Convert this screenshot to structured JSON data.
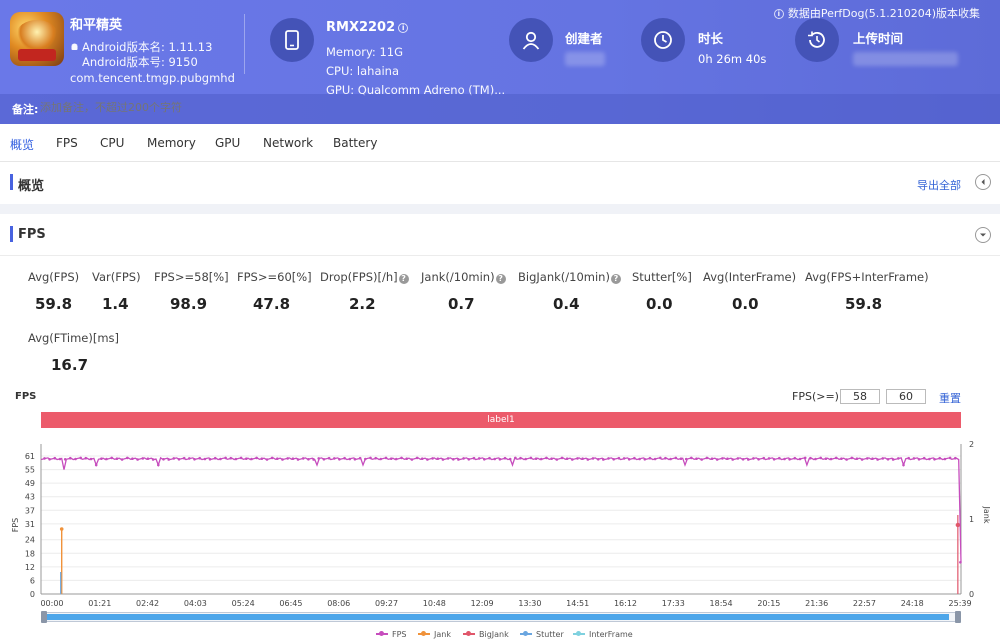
{
  "header": {
    "game_title": "和平精英",
    "version_name": "Android版本名: 1.11.13",
    "version_code": "Android版本号: 9150",
    "package": "com.tencent.tmgp.pubgmhd",
    "device_model": "RMX2202",
    "memory": "Memory: 11G",
    "cpu": "CPU: lahaina",
    "gpu": "GPU: Qualcomm Adreno (TM)...",
    "creator_label": "创建者",
    "duration_label": "时长",
    "duration_value": "0h 26m 40s",
    "upload_label": "上传时间",
    "perfdog_note": "数据由PerfDog(5.1.210204)版本收集",
    "remark_label": "备注:",
    "remark_placeholder": "添加备注，不超过200个字符"
  },
  "tabs": [
    {
      "label": "概览",
      "active": true
    },
    {
      "label": "FPS"
    },
    {
      "label": "CPU"
    },
    {
      "label": "Memory"
    },
    {
      "label": "GPU"
    },
    {
      "label": "Network"
    },
    {
      "label": "Battery"
    }
  ],
  "overview": {
    "title": "概览",
    "export_label": "导出全部"
  },
  "fps_section": {
    "title": "FPS",
    "stats": [
      {
        "label": "Avg(FPS)",
        "value": "59.8"
      },
      {
        "label": "Var(FPS)",
        "value": "1.4"
      },
      {
        "label": "FPS>=58[%]",
        "value": "98.9"
      },
      {
        "label": "FPS>=60[%]",
        "value": "47.8"
      },
      {
        "label": "Drop(FPS)[/h]",
        "value": "2.2"
      },
      {
        "label": "Jank(/10min)",
        "value": "0.7"
      },
      {
        "label": "BigJank(/10min)",
        "value": "0.4"
      },
      {
        "label": "Stutter[%]",
        "value": "0.0"
      },
      {
        "label": "Avg(InterFrame)",
        "value": "0.0"
      },
      {
        "label": "Avg(FPS+InterFrame)",
        "value": "59.8"
      },
      {
        "label": "Avg(FTime)[ms]",
        "value": "16.7"
      }
    ]
  },
  "chart_controls": {
    "title": "FPS",
    "threshold_label": "FPS(>=)",
    "threshold_1": "58",
    "threshold_2": "60",
    "reset_label": "重置",
    "band_label": "label1"
  },
  "colors": {
    "fps": "#c64dbd",
    "jank": "#f0923a",
    "bigjank": "#e0566a",
    "stutter": "#6aa6e0",
    "interframe": "#7fd1df",
    "header": "#6574e2",
    "accent": "#2f5de0"
  },
  "chart_data": {
    "type": "line",
    "ylabel": "FPS",
    "y2label": "Jank",
    "ylim": [
      0,
      61
    ],
    "yticks": [
      0,
      6,
      12,
      18,
      24,
      31,
      37,
      43,
      49,
      55,
      61
    ],
    "y2lim": [
      0,
      2
    ],
    "y2ticks": [
      0,
      1,
      2
    ],
    "x_ticks": [
      "00:00",
      "01:21",
      "02:42",
      "04:03",
      "05:24",
      "06:45",
      "08:06",
      "09:27",
      "10:48",
      "12:09",
      "13:30",
      "14:51",
      "16:12",
      "17:33",
      "18:54",
      "20:15",
      "21:36",
      "22:57",
      "24:18",
      "25:39"
    ],
    "duration_seconds": 1600,
    "series": [
      {
        "name": "FPS",
        "summary": "steady around 59-60 fps with brief dips to ~55-56; drops toward 0 at the end",
        "baseline": 59.8,
        "dips": [
          [
            40,
            55
          ],
          [
            95,
            57
          ],
          [
            205,
            57
          ],
          [
            480,
            57
          ],
          [
            560,
            57
          ],
          [
            820,
            57
          ],
          [
            1120,
            57
          ],
          [
            1330,
            57
          ],
          [
            1500,
            57
          ],
          [
            1598,
            14
          ]
        ]
      },
      {
        "name": "Jank",
        "spikes": [
          [
            36,
            1
          ]
        ]
      },
      {
        "name": "BigJank",
        "spikes": [
          [
            1598,
            1
          ]
        ]
      },
      {
        "name": "Stutter",
        "spikes": [
          [
            36,
            0.3
          ]
        ]
      },
      {
        "name": "InterFrame",
        "spikes": []
      }
    ],
    "legend": [
      "FPS",
      "Jank",
      "BigJank",
      "Stutter",
      "InterFrame"
    ],
    "legend_position": "bottom-center",
    "grid": true
  }
}
